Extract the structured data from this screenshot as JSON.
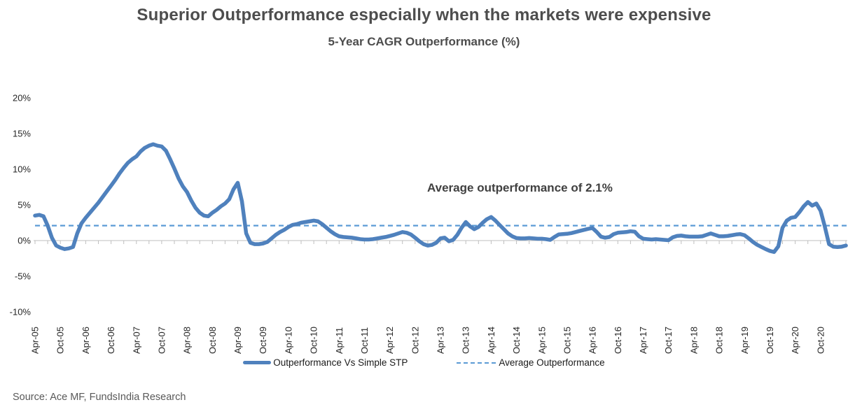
{
  "header": {
    "title": "Superior Outperformance especially when the markets were expensive",
    "subtitle": "5-Year CAGR Outperformance (%)"
  },
  "annotation": "Average outperformance of 2.1%",
  "legend": {
    "items": [
      {
        "marker": "thick-line",
        "label": "Outperformance Vs Simple STP"
      },
      {
        "marker": "dashed-line",
        "label": "Average Outperformance"
      }
    ]
  },
  "footer": {
    "source": "Source: Ace MF, FundsIndia Research"
  },
  "colors": {
    "line": "#4f81bd",
    "average": "#5b9bd5",
    "title_text": "#4d4d4d",
    "axis_text": "#262626",
    "axis_line": "#bfbfbf",
    "source_text": "#595959"
  },
  "chart_data": {
    "type": "line",
    "title": "Superior Outperformance especially when the markets were expensive",
    "subtitle": "5-Year CAGR Outperformance (%)",
    "xlabel": "",
    "ylabel": "5-Year CAGR Outperformance (%)",
    "ylim": [
      -10,
      20
    ],
    "y_ticks": [
      20,
      15,
      10,
      5,
      0,
      -5,
      -10
    ],
    "y_tick_format": "percent",
    "grid": "none",
    "legend_position": "bottom",
    "x_frequency": "monthly",
    "x_start": "Apr-05",
    "x_end": "Apr-21",
    "x_tick_labels": [
      "Apr-05",
      "Oct-05",
      "Apr-06",
      "Oct-06",
      "Apr-07",
      "Oct-07",
      "Apr-08",
      "Oct-08",
      "Apr-09",
      "Oct-09",
      "Apr-10",
      "Oct-10",
      "Apr-11",
      "Oct-11",
      "Apr-12",
      "Oct-12",
      "Apr-13",
      "Oct-13",
      "Apr-14",
      "Oct-14",
      "Apr-15",
      "Oct-15",
      "Apr-16",
      "Oct-16",
      "Apr-17",
      "Oct-17",
      "Apr-18",
      "Oct-18",
      "Apr-19",
      "Oct-19",
      "Apr-20",
      "Oct-20"
    ],
    "average": {
      "name": "Average Outperformance",
      "value": 2.1,
      "style": "dashed"
    },
    "series": [
      {
        "name": "Outperformance Vs Simple STP",
        "values": [
          3.5,
          3.6,
          3.4,
          2.1,
          0.4,
          -0.7,
          -1.0,
          -1.2,
          -1.1,
          -0.9,
          1.0,
          2.4,
          3.2,
          3.9,
          4.6,
          5.3,
          6.1,
          6.9,
          7.7,
          8.5,
          9.4,
          10.2,
          10.9,
          11.4,
          11.8,
          12.5,
          13.0,
          13.3,
          13.5,
          13.3,
          13.2,
          12.6,
          11.4,
          10.1,
          8.7,
          7.6,
          6.8,
          5.6,
          4.6,
          3.9,
          3.5,
          3.4,
          3.9,
          4.3,
          4.8,
          5.2,
          5.8,
          7.2,
          8.1,
          5.5,
          1.0,
          -0.3,
          -0.5,
          -0.5,
          -0.4,
          -0.2,
          0.3,
          0.8,
          1.2,
          1.5,
          1.9,
          2.2,
          2.3,
          2.5,
          2.6,
          2.7,
          2.8,
          2.7,
          2.3,
          1.8,
          1.3,
          0.9,
          0.6,
          0.5,
          0.45,
          0.4,
          0.3,
          0.2,
          0.15,
          0.15,
          0.2,
          0.3,
          0.4,
          0.5,
          0.65,
          0.8,
          1.0,
          1.2,
          1.1,
          0.85,
          0.4,
          -0.1,
          -0.5,
          -0.7,
          -0.6,
          -0.3,
          0.3,
          0.4,
          -0.1,
          0.1,
          0.8,
          1.8,
          2.6,
          2.0,
          1.6,
          1.9,
          2.5,
          3.0,
          3.3,
          2.8,
          2.2,
          1.6,
          1.0,
          0.6,
          0.35,
          0.3,
          0.3,
          0.35,
          0.3,
          0.25,
          0.25,
          0.2,
          0.1,
          0.5,
          0.85,
          0.9,
          0.95,
          1.05,
          1.2,
          1.35,
          1.5,
          1.65,
          1.75,
          1.2,
          0.55,
          0.4,
          0.5,
          0.9,
          1.1,
          1.15,
          1.2,
          1.3,
          1.25,
          0.6,
          0.25,
          0.2,
          0.15,
          0.2,
          0.15,
          0.1,
          0.05,
          0.45,
          0.65,
          0.7,
          0.6,
          0.55,
          0.55,
          0.55,
          0.6,
          0.8,
          1.0,
          0.8,
          0.6,
          0.6,
          0.65,
          0.75,
          0.85,
          0.9,
          0.75,
          0.3,
          -0.2,
          -0.6,
          -0.9,
          -1.2,
          -1.45,
          -1.6,
          -0.8,
          1.8,
          2.8,
          3.2,
          3.3,
          4.0,
          4.8,
          5.4,
          4.9,
          5.2,
          4.2,
          2.0,
          -0.5,
          -0.85,
          -0.9,
          -0.85,
          -0.7
        ]
      }
    ]
  }
}
